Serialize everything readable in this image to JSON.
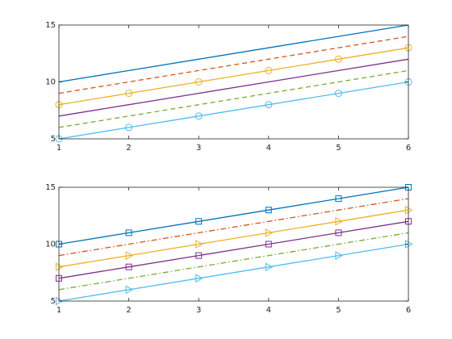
{
  "chart_data": [
    {
      "type": "line",
      "x": [
        1,
        2,
        3,
        4,
        5,
        6
      ],
      "xlim": [
        1,
        6
      ],
      "xticks": [
        1,
        2,
        3,
        4,
        5,
        6
      ],
      "ylim": [
        5,
        15
      ],
      "yticks": [
        5,
        10,
        15
      ],
      "grid": false,
      "series": [
        {
          "color": "#0072BD",
          "linestyle": "solid",
          "marker": "none",
          "values": [
            10,
            11,
            12,
            13,
            14,
            15
          ]
        },
        {
          "color": "#D95319",
          "linestyle": "dashed",
          "marker": "none",
          "values": [
            9,
            10,
            11,
            12,
            13,
            14
          ]
        },
        {
          "color": "#EDB120",
          "linestyle": "solid",
          "marker": "circle",
          "values": [
            8,
            9,
            10,
            11,
            12,
            13
          ]
        },
        {
          "color": "#7E2F8E",
          "linestyle": "solid",
          "marker": "none",
          "values": [
            7,
            8,
            9,
            10,
            11,
            12
          ]
        },
        {
          "color": "#77AC30",
          "linestyle": "dashed",
          "marker": "none",
          "values": [
            6,
            7,
            8,
            9,
            10,
            11
          ]
        },
        {
          "color": "#4DBEEE",
          "linestyle": "solid",
          "marker": "circle",
          "values": [
            5,
            6,
            7,
            8,
            9,
            10
          ]
        }
      ]
    },
    {
      "type": "line",
      "x": [
        1,
        2,
        3,
        4,
        5,
        6
      ],
      "xlim": [
        1,
        6
      ],
      "xticks": [
        1,
        2,
        3,
        4,
        5,
        6
      ],
      "ylim": [
        5,
        15
      ],
      "yticks": [
        5,
        10,
        15
      ],
      "grid": false,
      "series": [
        {
          "color": "#0072BD",
          "linestyle": "solid",
          "marker": "square",
          "values": [
            10,
            11,
            12,
            13,
            14,
            15
          ]
        },
        {
          "color": "#D95319",
          "linestyle": "dashdot",
          "marker": "none",
          "values": [
            9,
            10,
            11,
            12,
            13,
            14
          ]
        },
        {
          "color": "#EDB120",
          "linestyle": "solid",
          "marker": "triangle-right",
          "values": [
            8,
            9,
            10,
            11,
            12,
            13
          ]
        },
        {
          "color": "#7E2F8E",
          "linestyle": "solid",
          "marker": "square",
          "values": [
            7,
            8,
            9,
            10,
            11,
            12
          ]
        },
        {
          "color": "#77AC30",
          "linestyle": "dashdot",
          "marker": "none",
          "values": [
            6,
            7,
            8,
            9,
            10,
            11
          ]
        },
        {
          "color": "#4DBEEE",
          "linestyle": "solid",
          "marker": "triangle-right",
          "values": [
            5,
            6,
            7,
            8,
            9,
            10
          ]
        }
      ]
    }
  ]
}
